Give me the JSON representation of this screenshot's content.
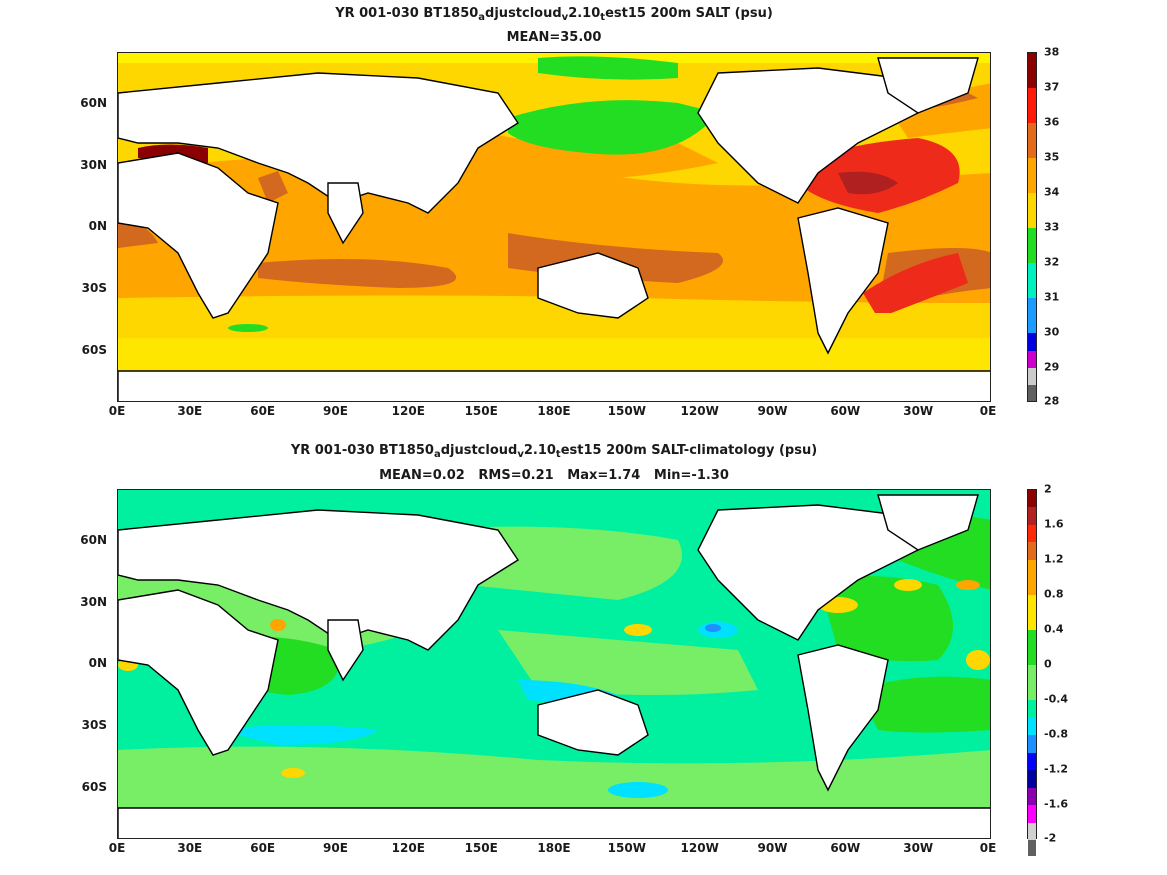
{
  "colors": {
    "ocean_base_top": "#f0b400",
    "yellow": "#ffd400",
    "lightyellow": "#fff200",
    "orange": "#ff9a00",
    "darkorange": "#d2691e",
    "red": "#ee2a1a",
    "darkred": "#8b0000",
    "green": "#22dd22",
    "lightgreen": "#77ee66",
    "aqua": "#00f0a0",
    "cyan": "#00e0ff",
    "blue": "#1d8fff",
    "land": "#ffffff"
  },
  "top_panel": {
    "title_line1_pre": "YR 001-030 BT1850",
    "title_sub1": "a",
    "title_mid1": "djustcloud",
    "title_sub2": "v",
    "title_mid2": "2.10",
    "title_sub3": "t",
    "title_post": "est15 200m SALT (psu)",
    "title_line2": "MEAN=35.00",
    "colorbar_labels": [
      "38",
      "37",
      "36",
      "35",
      "34",
      "33",
      "32",
      "31",
      "30",
      "29",
      "28"
    ],
    "colorbar_colors": [
      "#8b0000",
      "#ff1a0a",
      "#e46a1c",
      "#ffa500",
      "#ffd700",
      "#22dd22",
      "#00f0c0",
      "#1d9bff",
      "#2a5cff",
      "#0000e0",
      "#cc00cc",
      "#cccccc"
    ]
  },
  "bottom_panel": {
    "title_line1_pre": "YR 001-030 BT1850",
    "title_sub1": "a",
    "title_mid1": "djustcloud",
    "title_sub2": "v",
    "title_mid2": "2.10",
    "title_sub3": "t",
    "title_post": "est15 200m SALT-climatology (psu)",
    "title_line2": "MEAN=0.02   RMS=0.21   Max=1.74   Min=-1.30",
    "colorbar_labels": [
      "2",
      "1.6",
      "1.2",
      "0.8",
      "0.4",
      "0",
      "-0.4",
      "-0.8",
      "-1.2",
      "-1.6",
      "-2"
    ],
    "colorbar_colors": [
      "#8b0000",
      "#b22222",
      "#ff2a0a",
      "#e46a1c",
      "#ffa500",
      "#ffe600",
      "#22dd22",
      "#77ee66",
      "#00f0a0",
      "#00e0ff",
      "#1d8fff",
      "#0000ff",
      "#0000a0",
      "#8a00b0",
      "#ff00ff",
      "#d0d0d0",
      "#606060"
    ]
  },
  "y_axis_labels": [
    "60N",
    "30N",
    "0N",
    "30S",
    "60S"
  ],
  "x_axis_labels": [
    "0E",
    "30E",
    "60E",
    "90E",
    "120E",
    "150E",
    "180E",
    "150W",
    "120W",
    "90W",
    "60W",
    "30W",
    "0E"
  ]
}
